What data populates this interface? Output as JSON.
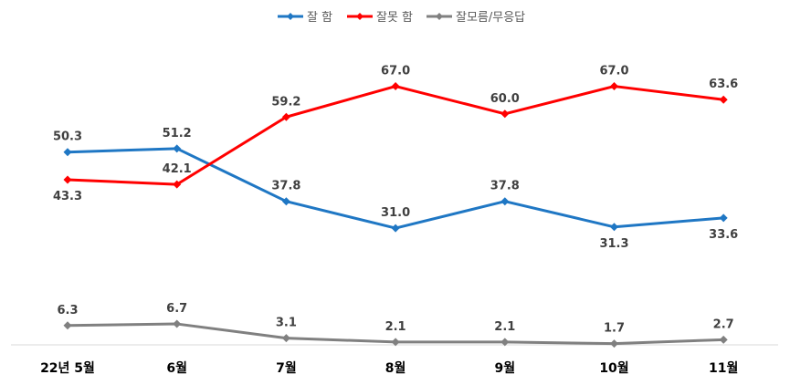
{
  "chart_data": {
    "type": "line",
    "categories": [
      "22년 5월",
      "6월",
      "7월",
      "8월",
      "9월",
      "10월",
      "11월"
    ],
    "series": [
      {
        "name": "잘 함",
        "color": "#1f77c4",
        "values": [
          50.3,
          51.2,
          37.8,
          31.0,
          37.8,
          31.3,
          33.6
        ],
        "labels": [
          "50.3",
          "51.2",
          "37.8",
          "31.0",
          "37.8",
          "31.3",
          "33.6"
        ],
        "label_pos": [
          "above",
          "above",
          "above",
          "above",
          "above",
          "below",
          "below"
        ]
      },
      {
        "name": "잘못 함",
        "color": "#ff0000",
        "values": [
          43.3,
          42.1,
          59.2,
          67.0,
          60.0,
          67.0,
          63.6
        ],
        "labels": [
          "43.3",
          "42.1",
          "59.2",
          "67.0",
          "60.0",
          "67.0",
          "63.6"
        ],
        "label_pos": [
          "below",
          "above",
          "above",
          "above",
          "above",
          "above",
          "above"
        ]
      },
      {
        "name": "잘모름/무응답",
        "color": "#808080",
        "values": [
          6.3,
          6.7,
          3.1,
          2.1,
          2.1,
          1.7,
          2.7
        ],
        "labels": [
          "6.3",
          "6.7",
          "3.1",
          "2.1",
          "2.1",
          "1.7",
          "2.7"
        ],
        "label_pos": [
          "above",
          "above",
          "above",
          "above",
          "above",
          "above",
          "above"
        ]
      }
    ],
    "ylim": [
      0,
      80
    ],
    "grid": false,
    "legend": "top-center",
    "axis_color": "#d9d9d9"
  }
}
